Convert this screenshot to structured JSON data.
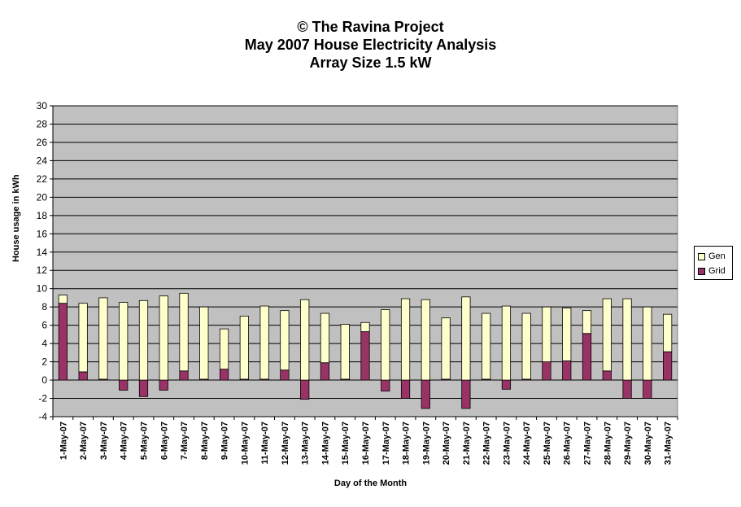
{
  "chart_data": {
    "type": "bar",
    "stacked": true,
    "title_lines": [
      "© The Ravina Project",
      "May 2007 House Electricity Analysis",
      "Array Size 1.5 kW"
    ],
    "xlabel": "Day of the Month",
    "ylabel": "House usage in kWh",
    "ylim": [
      -4,
      30
    ],
    "yticks": [
      -4,
      -2,
      0,
      2,
      4,
      6,
      8,
      10,
      12,
      14,
      16,
      18,
      20,
      22,
      24,
      26,
      28,
      30
    ],
    "grid": true,
    "legend_position": "right",
    "categories": [
      "1-May-07",
      "2-May-07",
      "3-May-07",
      "4-May-07",
      "5-May-07",
      "6-May-07",
      "7-May-07",
      "8-May-07",
      "9-May-07",
      "10-May-07",
      "11-May-07",
      "12-May-07",
      "13-May-07",
      "14-May-07",
      "15-May-07",
      "16-May-07",
      "17-May-07",
      "18-May-07",
      "19-May-07",
      "20-May-07",
      "21-May-07",
      "22-May-07",
      "23-May-07",
      "24-May-07",
      "25-May-07",
      "26-May-07",
      "27-May-07",
      "28-May-07",
      "29-May-07",
      "30-May-07",
      "31-May-07"
    ],
    "series": [
      {
        "name": "Grid",
        "color": "#993366",
        "values": [
          8.4,
          0.9,
          0.1,
          -1.1,
          -1.8,
          -1.1,
          1.0,
          0.1,
          1.2,
          0.1,
          0.1,
          1.1,
          -2.1,
          1.9,
          0.1,
          5.3,
          -1.2,
          -2.0,
          -3.1,
          0.1,
          -3.1,
          0.1,
          -1.0,
          0.1,
          2.0,
          2.1,
          5.1,
          1.0,
          -2.0,
          -2.0,
          3.1
        ]
      },
      {
        "name": "Gen",
        "color": "#FFFFCC",
        "values": [
          0.9,
          7.5,
          8.9,
          8.5,
          8.7,
          9.2,
          8.5,
          7.9,
          4.4,
          6.9,
          8.0,
          6.5,
          8.8,
          5.4,
          6.0,
          1.0,
          7.7,
          8.9,
          8.8,
          6.7,
          9.1,
          7.2,
          8.1,
          7.2,
          6.0,
          5.8,
          2.5,
          7.9,
          8.9,
          8.0,
          4.1
        ]
      }
    ]
  }
}
